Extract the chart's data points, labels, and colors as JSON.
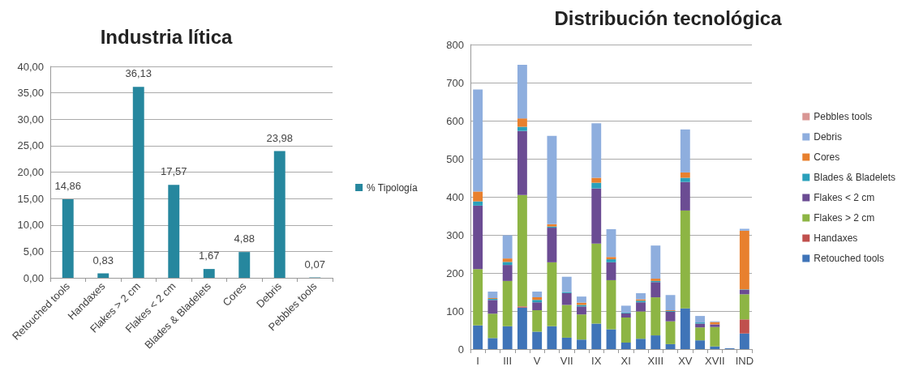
{
  "chart_data": [
    {
      "type": "bar",
      "title": "Industria lítica",
      "categories": [
        "Retouched tools",
        "Handaxes",
        "Flakes > 2 cm",
        "Flakes < 2 cm",
        "Blades & Bladelets",
        "Cores",
        "Debris",
        "Pebbles tools"
      ],
      "series": [
        {
          "name": "% Tipología",
          "color": "#26879e",
          "values": [
            14.86,
            0.83,
            36.13,
            17.57,
            1.67,
            4.88,
            23.98,
            0.07
          ],
          "value_labels": [
            "14,86",
            "0,83",
            "36,13",
            "17,57",
            "1,67",
            "4,88",
            "23,98",
            "0,07"
          ]
        }
      ],
      "ylim": [
        0,
        40
      ],
      "yticks": [
        {
          "value": 0,
          "label": "0,00"
        },
        {
          "value": 5,
          "label": "5,00"
        },
        {
          "value": 10,
          "label": "10,00"
        },
        {
          "value": 15,
          "label": "15,00"
        },
        {
          "value": 20,
          "label": "20,00"
        },
        {
          "value": 25,
          "label": "25,00"
        },
        {
          "value": 30,
          "label": "30,00"
        },
        {
          "value": 35,
          "label": "35,00"
        },
        {
          "value": 40,
          "label": "40,00"
        }
      ],
      "grid": "y",
      "legend": "right"
    },
    {
      "type": "bar",
      "title": "Distribución tecnológica",
      "stacked": true,
      "categories": [
        "I",
        null,
        "III",
        null,
        "V",
        null,
        "VII",
        null,
        "IX",
        null,
        "XI",
        null,
        "XIII",
        null,
        "XV",
        null,
        "XVII",
        null,
        "IND"
      ],
      "series": [
        {
          "name": "Retouched tools",
          "color": "#3f74b8",
          "values": [
            62,
            29,
            60,
            109,
            46,
            60,
            30,
            25,
            67,
            52,
            17,
            27,
            36,
            13,
            107,
            23,
            7,
            2,
            41
          ]
        },
        {
          "name": "Handaxes",
          "color": "#c0504d",
          "values": [
            0,
            0,
            0,
            3,
            0,
            0,
            0,
            0,
            0,
            0,
            0,
            0,
            0,
            0,
            0,
            0,
            0,
            0,
            37
          ]
        },
        {
          "name": "Flakes > 2 cm",
          "color": "#8db544",
          "values": [
            148,
            64,
            119,
            293,
            56,
            168,
            86,
            66,
            210,
            129,
            66,
            72,
            100,
            60,
            257,
            34,
            51,
            0,
            66
          ]
        },
        {
          "name": "Flakes < 2 cm",
          "color": "#6b4c93",
          "values": [
            167,
            36,
            42,
            168,
            21,
            91,
            31,
            21,
            145,
            47,
            11,
            24,
            40,
            25,
            75,
            10,
            7,
            0,
            12
          ]
        },
        {
          "name": "Blades & Bladelets",
          "color": "#2aa0bb",
          "values": [
            11,
            3,
            8,
            11,
            6,
            3,
            3,
            4,
            15,
            8,
            2,
            4,
            3,
            2,
            11,
            3,
            0,
            0,
            1
          ]
        },
        {
          "name": "Cores",
          "color": "#e8802e",
          "values": [
            26,
            2,
            9,
            22,
            7,
            6,
            0,
            6,
            13,
            6,
            0,
            4,
            6,
            2,
            14,
            0,
            6,
            0,
            154
          ]
        },
        {
          "name": "Debris",
          "color": "#8eaede",
          "values": [
            268,
            17,
            61,
            141,
            15,
            232,
            40,
            16,
            143,
            73,
            18,
            16,
            87,
            40,
            113,
            17,
            2,
            0,
            5
          ]
        },
        {
          "name": "Pebbles tools",
          "color": "#d99694",
          "values": [
            0,
            0,
            0,
            0,
            0,
            0,
            0,
            0,
            0,
            0,
            0,
            0,
            0,
            0,
            0,
            0,
            0,
            0,
            0
          ]
        }
      ],
      "ylim": [
        0,
        800
      ],
      "yticks": [
        0,
        100,
        200,
        300,
        400,
        500,
        600,
        700,
        800
      ],
      "grid": "y",
      "legend": "right"
    }
  ]
}
